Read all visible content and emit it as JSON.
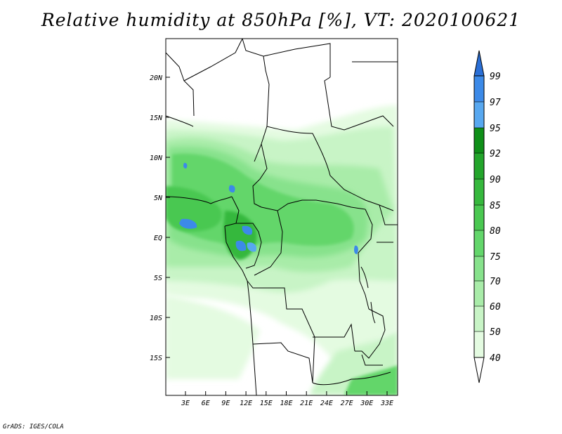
{
  "title": "Relative humidity at 850hPa [%], VT: 2020100621",
  "credit": "GrADS: IGES/COLA",
  "map": {
    "lat_labels": [
      "20N",
      "15N",
      "10N",
      "5N",
      "EQ",
      "5S",
      "10S",
      "15S"
    ],
    "lon_labels": [
      "3E",
      "6E",
      "9E",
      "12E",
      "15E",
      "18E",
      "21E",
      "24E",
      "27E",
      "30E",
      "33E"
    ]
  },
  "colorbar": {
    "levels": [
      "99",
      "97",
      "95",
      "92",
      "90",
      "85",
      "80",
      "75",
      "70",
      "60",
      "50",
      "40"
    ],
    "colors": [
      "#2a6fd6",
      "#3c8ae8",
      "#58a8f0",
      "#0f8f18",
      "#23a52b",
      "#36b83d",
      "#4ac851",
      "#63d66b",
      "#87e28c",
      "#a9eca9",
      "#c8f4c6",
      "#e4fbe1"
    ]
  }
}
